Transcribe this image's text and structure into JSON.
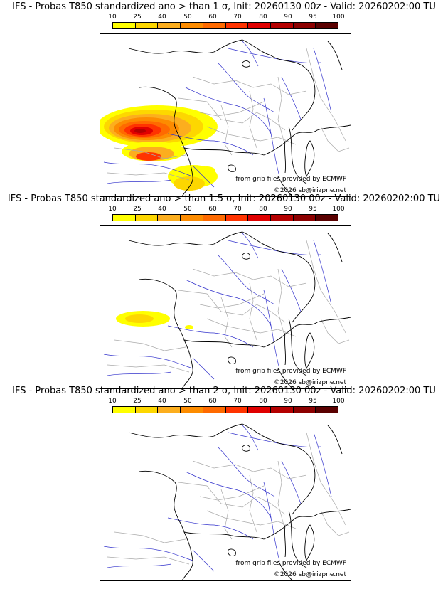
{
  "colorbar": {
    "ticks": [
      "10",
      "25",
      "40",
      "50",
      "60",
      "70",
      "80",
      "90",
      "95",
      "100"
    ],
    "colors": [
      "#ffff00",
      "#fdd700",
      "#fcae1e",
      "#fd8c00",
      "#ff6a00",
      "#ff3300",
      "#e00000",
      "#b40000",
      "#8c0000",
      "#5a0000"
    ]
  },
  "panels": [
    {
      "title": "IFS - Probas T850  standardized ano > than 1 σ, Init: 20260130 00z - Valid: 20260202:00 TU"
    },
    {
      "title": "IFS - Probas T850  standardized ano > than 1.5 σ, Init: 20260130 00z - Valid: 20260202:00 TU"
    },
    {
      "title": "IFS - Probas T850  standardized ano > than 2 σ, Init: 20260130 00z - Valid: 20260202:00 TU"
    }
  ],
  "credits": {
    "source": "from grib files provided by ECMWF",
    "copyright": "©2026 sb@irizpne.net"
  }
}
